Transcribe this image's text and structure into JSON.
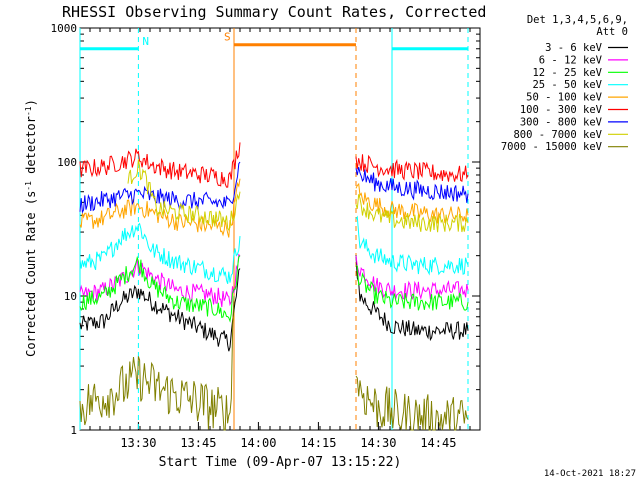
{
  "chart_data": {
    "type": "line",
    "title": "RHESSI Observing Summary Count Rates, Corrected",
    "xlabel": "Start Time (09-Apr-07 13:15:22)",
    "ylabel_parts": {
      "prefix": "Corrected Count Rate (s",
      "sup1": "-1",
      "mid": " detector",
      "sup2": "-1",
      "suffix": ")"
    },
    "y_scale": "log",
    "ylim": [
      1,
      1000
    ],
    "xlim_minutes": [
      0,
      100
    ],
    "x_ticks": [
      {
        "t": 14.6,
        "label": "13:30"
      },
      {
        "t": 29.6,
        "label": "13:45"
      },
      {
        "t": 44.6,
        "label": "14:00"
      },
      {
        "t": 59.6,
        "label": "14:15"
      },
      {
        "t": 74.6,
        "label": "14:30"
      },
      {
        "t": 89.6,
        "label": "14:45"
      }
    ],
    "y_ticks": [
      {
        "v": 1,
        "label": "1"
      },
      {
        "v": 10,
        "label": "10"
      },
      {
        "v": 100,
        "label": "100"
      },
      {
        "v": 1000,
        "label": "1000"
      }
    ],
    "legend_header": [
      "Det 1,3,4,5,6,9,",
      "Att 0"
    ],
    "legend_placement": "right",
    "series": [
      {
        "name": "3 - 6 keV",
        "color": "#000000",
        "x": [
          0,
          6,
          10,
          14.6,
          18,
          24,
          34,
          37.5,
          40,
          69,
          70,
          74,
          78,
          84,
          90,
          97
        ],
        "y": [
          6,
          6.5,
          9,
          11,
          9,
          7,
          5,
          4.5,
          16,
          19,
          10,
          7.5,
          6,
          5.5,
          5.5,
          5.5
        ]
      },
      {
        "name": "6 - 12 keV",
        "color": "#ff00ff",
        "x": [
          0,
          6,
          10,
          14.6,
          18,
          24,
          34,
          37.5,
          40,
          69,
          70,
          74,
          78,
          84,
          90,
          97
        ],
        "y": [
          10,
          11,
          13,
          17,
          14,
          11,
          10,
          9,
          20,
          19,
          16,
          12,
          11,
          11,
          11,
          11
        ]
      },
      {
        "name": "12 - 25 keV",
        "color": "#00ff00",
        "x": [
          0,
          6,
          10,
          14.6,
          18,
          24,
          34,
          37.5,
          40,
          69,
          70,
          74,
          78,
          84,
          90,
          97
        ],
        "y": [
          9,
          10,
          13,
          18,
          12,
          9,
          8,
          7,
          20,
          17,
          13,
          10,
          9,
          9,
          9,
          9
        ]
      },
      {
        "name": "25 - 50 keV",
        "color": "#00ffff",
        "x": [
          0,
          6,
          10,
          14.6,
          18,
          24,
          34,
          37.5,
          40,
          69,
          70,
          74,
          78,
          84,
          90,
          97
        ],
        "y": [
          17,
          19,
          27,
          34,
          22,
          18,
          15,
          14,
          28,
          40,
          25,
          20,
          18,
          17,
          17,
          17
        ]
      },
      {
        "name": "50 - 100 keV",
        "color": "#ffa500",
        "x": [
          0,
          6,
          10,
          14.6,
          18,
          24,
          34,
          37.5,
          40,
          69,
          70,
          74,
          78,
          84,
          90,
          97
        ],
        "y": [
          35,
          38,
          43,
          47,
          42,
          36,
          33,
          32,
          75,
          72,
          55,
          48,
          44,
          42,
          40,
          40
        ]
      },
      {
        "name": "100 - 300 keV",
        "color": "#ff0000",
        "x": [
          0,
          6,
          10,
          14.6,
          18,
          24,
          34,
          37.5,
          40,
          69,
          70,
          74,
          78,
          84,
          90,
          97
        ],
        "y": [
          88,
          92,
          100,
          110,
          95,
          85,
          78,
          75,
          140,
          105,
          100,
          93,
          88,
          85,
          82,
          80
        ]
      },
      {
        "name": "300 - 800 keV",
        "color": "#0000ff",
        "x": [
          0,
          6,
          10,
          14.6,
          18,
          24,
          34,
          37.5,
          40,
          69,
          70,
          74,
          78,
          84,
          90,
          97
        ],
        "y": [
          48,
          52,
          55,
          58,
          55,
          52,
          50,
          48,
          100,
          95,
          80,
          70,
          65,
          62,
          60,
          58
        ]
      },
      {
        "name": "800 - 7000 keV",
        "color": "#d0d000",
        "x": [
          12,
          13.5,
          14.6,
          16,
          17.5,
          19,
          24,
          30,
          34,
          37.5,
          40,
          69,
          70,
          74,
          78,
          84,
          90,
          97
        ],
        "y": [
          70,
          85,
          90,
          80,
          60,
          45,
          42,
          40,
          38,
          35,
          60,
          55,
          48,
          40,
          37,
          35,
          35,
          35
        ]
      },
      {
        "name": "7000 - 15000 keV",
        "color": "#808000",
        "x": [
          0,
          10,
          14.6,
          20,
          30,
          37.5,
          38.5,
          69,
          70,
          74,
          80,
          90,
          97
        ],
        "y": [
          1.5,
          2,
          2.5,
          2,
          1.6,
          1.3,
          10,
          2.8,
          2,
          1.5,
          1.3,
          1.2,
          1.2
        ]
      }
    ],
    "attenuator_bands": [
      {
        "label": "N",
        "color": "#00ffff",
        "level": 700,
        "segments": [
          [
            0,
            14.6
          ],
          [
            78,
            97
          ]
        ]
      },
      {
        "label": "S",
        "color": "#ff8000",
        "level": 750,
        "segments": [
          [
            38.5,
            69
          ]
        ]
      }
    ]
  },
  "timestamp": "14-Oct-2021 18:27"
}
